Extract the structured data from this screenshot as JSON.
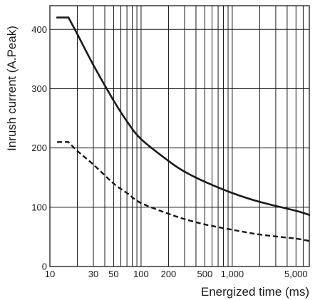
{
  "chart_data": {
    "type": "line",
    "title": "",
    "xlabel": "Energized time (ms)",
    "ylabel": "Inrush current  (A.Peak)",
    "x_scale": "log",
    "xlim": [
      10,
      7000
    ],
    "ylim": [
      0,
      440
    ],
    "grid": true,
    "x_ticks": [
      {
        "value": 10,
        "label": "10"
      },
      {
        "value": 30,
        "label": "30"
      },
      {
        "value": 50,
        "label": "50"
      },
      {
        "value": 100,
        "label": "100"
      },
      {
        "value": 200,
        "label": "200"
      },
      {
        "value": 500,
        "label": "500"
      },
      {
        "value": 1000,
        "label": "1,000"
      },
      {
        "value": 5000,
        "label": "5,000"
      }
    ],
    "x_gridlines": [
      20,
      30,
      40,
      50,
      60,
      70,
      80,
      90,
      100,
      200,
      300,
      400,
      500,
      600,
      700,
      800,
      900,
      1000,
      2000,
      3000,
      4000,
      5000,
      6000
    ],
    "y_ticks": [
      {
        "value": 0,
        "label": "0"
      },
      {
        "value": 100,
        "label": "100"
      },
      {
        "value": 200,
        "label": "200"
      },
      {
        "value": 300,
        "label": "300"
      },
      {
        "value": 400,
        "label": "400"
      }
    ],
    "series": [
      {
        "style": "solid",
        "x": [
          12,
          16,
          20,
          30,
          50,
          70,
          100,
          200,
          300,
          500,
          1000,
          2000,
          5000,
          7000
        ],
        "y": [
          420,
          420,
          392,
          340,
          280,
          245,
          215,
          178,
          160,
          143,
          124,
          109,
          94,
          87
        ]
      },
      {
        "style": "dashed",
        "x": [
          12,
          16,
          20,
          30,
          50,
          70,
          100,
          200,
          300,
          500,
          1000,
          2000,
          5000,
          7000
        ],
        "y": [
          210,
          210,
          195,
          172,
          140,
          124,
          107,
          89,
          80,
          71,
          62,
          54,
          47,
          43
        ]
      }
    ]
  }
}
